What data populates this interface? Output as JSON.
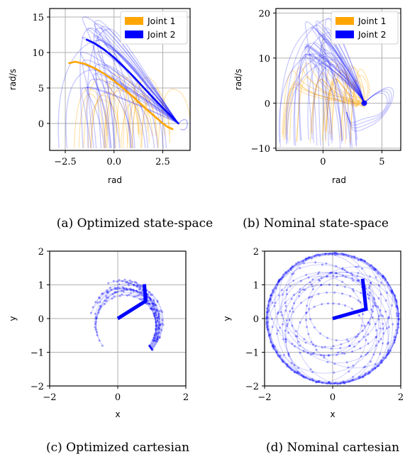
{
  "chart_data": [
    {
      "type": "line",
      "caption": "(a) Optimized state-space",
      "xlabel": "rad",
      "ylabel": "rad/s",
      "xlim": [
        -3.3,
        3.9
      ],
      "ylim": [
        -3.8,
        16.2
      ],
      "xticks": [
        -2.5,
        0.0,
        2.5
      ],
      "xtick_labels": [
        "−2.5",
        "0.0",
        "2.5"
      ],
      "yticks": [
        0,
        5,
        10,
        15
      ],
      "ytick_labels": [
        "0",
        "5",
        "10",
        "15"
      ],
      "grid": true,
      "legend": "top-right",
      "series": [
        {
          "name": "Joint 1",
          "color": "#ffa500",
          "x": [
            3.0,
            2.75,
            2.5,
            2.0,
            1.5,
            1.0,
            0.5,
            0.0,
            -0.5,
            -1.0,
            -1.5,
            -2.0,
            -2.3
          ],
          "y": [
            -0.8,
            -0.5,
            0.0,
            1.2,
            2.4,
            3.7,
            4.9,
            6.0,
            7.0,
            7.8,
            8.4,
            8.7,
            8.5
          ]
        },
        {
          "name": "Joint 2",
          "color": "#0000ff",
          "x": [
            3.3,
            2.5,
            2.0,
            1.5,
            1.0,
            0.5,
            0.0,
            -0.5,
            -1.0,
            -1.4
          ],
          "y": [
            0.0,
            2.2,
            3.6,
            5.1,
            6.6,
            8.0,
            9.3,
            10.4,
            11.3,
            11.8
          ]
        }
      ],
      "ghost_trajectories": {
        "joint1": 20,
        "joint2": 26
      }
    },
    {
      "type": "line",
      "caption": "(b) Nominal state-space",
      "xlabel": "rad",
      "ylabel": "rad/s",
      "xlim": [
        -4.0,
        6.6
      ],
      "ylim": [
        -10.5,
        21.0
      ],
      "xticks": [
        0,
        5
      ],
      "xtick_labels": [
        "0",
        "5"
      ],
      "yticks": [
        -10,
        0,
        10,
        20
      ],
      "ytick_labels": [
        "−10",
        "0",
        "10",
        "20"
      ],
      "grid": true,
      "legend": "top-right",
      "series": [
        {
          "name": "Joint 1",
          "color": "#ffa500",
          "x": [
            2.6,
            2.0,
            1.0,
            0.0,
            -1.0,
            -2.0
          ],
          "y": [
            0.0,
            4.0,
            8.0,
            10.0,
            9.0,
            6.0
          ]
        },
        {
          "name": "Joint 2",
          "color": "#0000ff",
          "x": [
            3.5,
            2.5,
            1.0,
            0.0,
            -1.0,
            -2.0
          ],
          "y": [
            0.0,
            6.0,
            12.0,
            16.0,
            15.0,
            11.0
          ]
        }
      ],
      "ghost_trajectories": {
        "joint1": 26,
        "joint2": 30
      }
    },
    {
      "type": "scatter",
      "caption": "(c) Optimized cartesian",
      "xlabel": "x",
      "ylabel": "y",
      "xlim": [
        -2,
        2
      ],
      "ylim": [
        -2,
        2
      ],
      "xticks": [
        -2,
        0,
        2
      ],
      "xtick_labels": [
        "−2",
        "0",
        "2"
      ],
      "yticks": [
        -2,
        -1,
        0,
        1,
        2
      ],
      "ytick_labels": [
        "−2",
        "−1",
        "0",
        "1",
        "2"
      ],
      "grid": true,
      "arm": {
        "color": "#0000ff",
        "x": [
          0,
          0.82,
          0.78
        ],
        "y": [
          0,
          0.52,
          1.02
        ]
      },
      "trace_count": 18
    },
    {
      "type": "scatter",
      "caption": "(d) Nominal cartesian",
      "xlabel": "x",
      "ylabel": "y",
      "xlim": [
        -2,
        2
      ],
      "ylim": [
        -2,
        2
      ],
      "xticks": [
        -2,
        0,
        2
      ],
      "xtick_labels": [
        "−2",
        "0",
        "2"
      ],
      "yticks": [
        -2,
        -1,
        0,
        1,
        2
      ],
      "ytick_labels": [
        "−2",
        "−1",
        "0",
        "1",
        "2"
      ],
      "grid": true,
      "arm": {
        "color": "#0000ff",
        "x": [
          0,
          0.98,
          0.88
        ],
        "y": [
          0,
          0.28,
          1.18
        ]
      },
      "trace_count": 26
    }
  ]
}
